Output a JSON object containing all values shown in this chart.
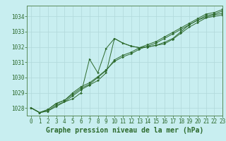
{
  "title": "Graphe pression niveau de la mer (hPa)",
  "bg_color": "#c8eef0",
  "grid_color": "#b0d8da",
  "line_color": "#2d6a2d",
  "marker_color": "#2d6a2d",
  "xlim": [
    -0.5,
    23
  ],
  "ylim": [
    1027.5,
    1034.7
  ],
  "yticks": [
    1028,
    1029,
    1030,
    1031,
    1032,
    1033,
    1034
  ],
  "xticks": [
    0,
    1,
    2,
    3,
    4,
    5,
    6,
    7,
    8,
    9,
    10,
    11,
    12,
    13,
    14,
    15,
    16,
    17,
    18,
    19,
    20,
    21,
    22,
    23
  ],
  "series": [
    [
      1028.0,
      1027.7,
      1027.8,
      1028.2,
      1028.4,
      1028.8,
      1029.2,
      1029.5,
      1029.8,
      1030.3,
      1032.55,
      1032.25,
      1032.05,
      1031.95,
      1032.0,
      1032.1,
      1032.3,
      1032.55,
      1033.0,
      1033.45,
      1033.75,
      1033.95,
      1034.1,
      1034.2
    ],
    [
      1028.0,
      1027.7,
      1027.9,
      1028.3,
      1028.5,
      1029.0,
      1029.4,
      1029.65,
      1030.05,
      1030.5,
      1031.05,
      1031.35,
      1031.55,
      1031.85,
      1032.05,
      1032.25,
      1032.55,
      1032.85,
      1033.15,
      1033.45,
      1033.75,
      1034.05,
      1034.15,
      1034.35
    ],
    [
      1028.0,
      1027.7,
      1027.9,
      1028.3,
      1028.5,
      1028.9,
      1029.3,
      1029.55,
      1030.0,
      1030.45,
      1031.15,
      1031.45,
      1031.65,
      1031.95,
      1032.15,
      1032.35,
      1032.65,
      1032.95,
      1033.25,
      1033.55,
      1033.85,
      1034.15,
      1034.25,
      1034.45
    ],
    [
      1028.0,
      1027.7,
      1027.8,
      1028.1,
      1028.4,
      1028.6,
      1029.0,
      1031.2,
      1030.3,
      1031.9,
      1032.55,
      1032.25,
      1032.05,
      1031.95,
      1032.0,
      1032.1,
      1032.2,
      1032.5,
      1032.9,
      1033.3,
      1033.6,
      1033.9,
      1034.0,
      1034.1
    ]
  ],
  "title_fontsize": 7,
  "tick_fontsize": 5.5,
  "title_color": "#2d6a2d",
  "tick_color": "#2d6a2d",
  "axis_color": "#5a8a5a"
}
